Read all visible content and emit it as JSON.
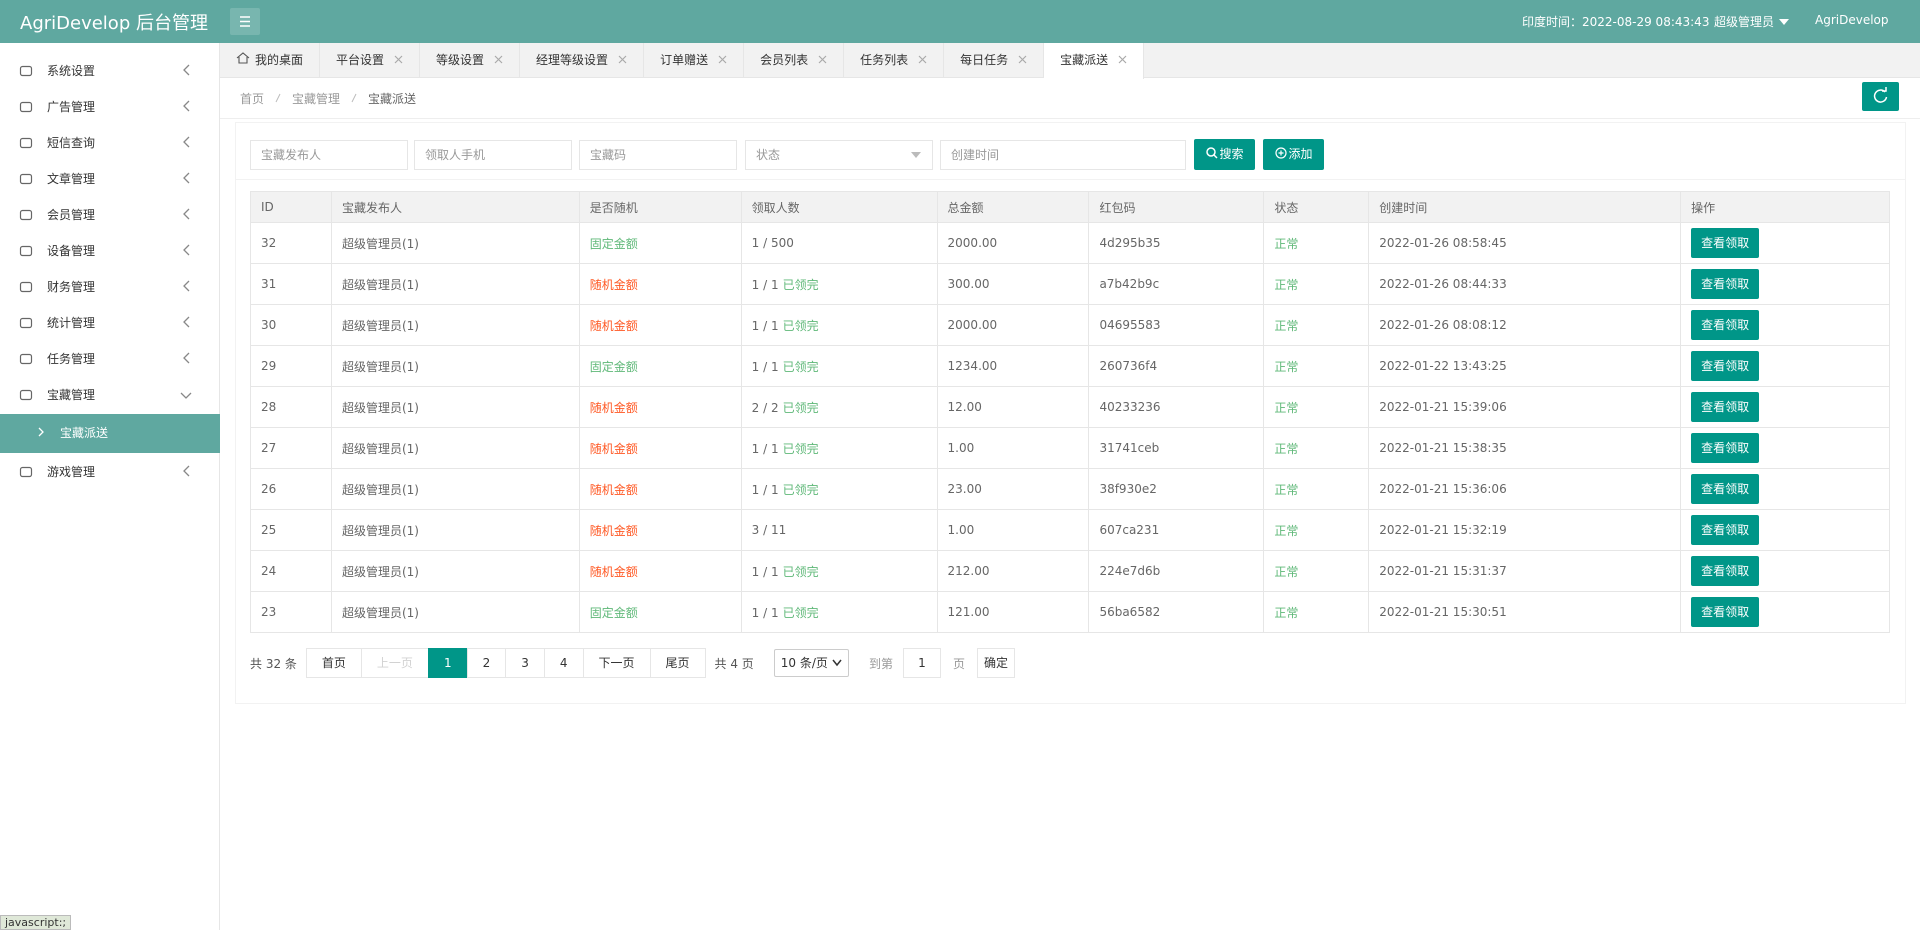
{
  "header": {
    "title": "AgriDevelop 后台管理",
    "time": "印度时间：2022-08-29 08:43:43",
    "role": "超级管理员",
    "user": "AgriDevelop"
  },
  "sidebar": {
    "items": [
      {
        "label": "系统设置"
      },
      {
        "label": "广告管理"
      },
      {
        "label": "短信查询"
      },
      {
        "label": "文章管理"
      },
      {
        "label": "会员管理"
      },
      {
        "label": "设备管理"
      },
      {
        "label": "财务管理"
      },
      {
        "label": "统计管理"
      },
      {
        "label": "任务管理"
      },
      {
        "label": "宝藏管理",
        "open": true,
        "children": [
          "宝藏派送"
        ]
      },
      {
        "label": "游戏管理"
      }
    ]
  },
  "tabs": [
    "我的桌面",
    "平台设置",
    "等级设置",
    "经理等级设置",
    "订单赠送",
    "会员列表",
    "任务列表",
    "每日任务",
    "宝藏派送"
  ],
  "active_tab": 8,
  "breadcrumb": [
    "首页",
    "宝藏管理",
    "宝藏派送"
  ],
  "search": {
    "fields": [
      "宝藏发布人",
      "领取人手机",
      "宝藏码"
    ],
    "status": "状态",
    "created": "创建时间",
    "search_button": "搜索",
    "add_button": "添加"
  },
  "table": {
    "columns": [
      "ID",
      "宝藏发布人",
      "是否随机",
      "领取人数",
      "总金额",
      "红包码",
      "状态",
      "创建时间",
      "操作"
    ],
    "rows": [
      {
        "id": "32",
        "publisher": "超级管理员(1)",
        "type": {
          "text": "固定金额",
          "color": "#5FB878"
        },
        "count": "1 / 500",
        "amount": "2000.00",
        "code": "4d295b35",
        "status": "正常",
        "time": "2022-01-26 08:58:45",
        "action": "查看领取"
      },
      {
        "id": "31",
        "publisher": "超级管理员(1)",
        "type": {
          "text": "随机金额",
          "color": "#FF5722"
        },
        "count": "1 / 1",
        "claimed": "已领完",
        "amount": "300.00",
        "code": "a7b42b9c",
        "status": "正常",
        "time": "2022-01-26 08:44:33",
        "action": "查看领取"
      },
      {
        "id": "30",
        "publisher": "超级管理员(1)",
        "type": {
          "text": "随机金额",
          "color": "#FF5722"
        },
        "count": "1 / 1",
        "claimed": "已领完",
        "amount": "2000.00",
        "code": "04695583",
        "status": "正常",
        "time": "2022-01-26 08:08:12",
        "action": "查看领取"
      },
      {
        "id": "29",
        "publisher": "超级管理员(1)",
        "type": {
          "text": "固定金额",
          "color": "#5FB878"
        },
        "count": "1 / 1",
        "claimed": "已领完",
        "amount": "1234.00",
        "code": "260736f4",
        "status": "正常",
        "time": "2022-01-22 13:43:25",
        "action": "查看领取"
      },
      {
        "id": "28",
        "publisher": "超级管理员(1)",
        "type": {
          "text": "随机金额",
          "color": "#FF5722"
        },
        "count": "2 / 2",
        "claimed": "已领完",
        "amount": "12.00",
        "code": "40233236",
        "status": "正常",
        "time": "2022-01-21 15:39:06",
        "action": "查看领取"
      },
      {
        "id": "27",
        "publisher": "超级管理员(1)",
        "type": {
          "text": "随机金额",
          "color": "#FF5722"
        },
        "count": "1 / 1",
        "claimed": "已领完",
        "amount": "1.00",
        "code": "31741ceb",
        "status": "正常",
        "time": "2022-01-21 15:38:35",
        "action": "查看领取"
      },
      {
        "id": "26",
        "publisher": "超级管理员(1)",
        "type": {
          "text": "随机金额",
          "color": "#FF5722"
        },
        "count": "1 / 1",
        "claimed": "已领完",
        "amount": "23.00",
        "code": "38f930e2",
        "status": "正常",
        "time": "2022-01-21 15:36:06",
        "action": "查看领取"
      },
      {
        "id": "25",
        "publisher": "超级管理员(1)",
        "type": {
          "text": "随机金额",
          "color": "#FF5722"
        },
        "count": "3 / 11",
        "amount": "1.00",
        "code": "607ca231",
        "status": "正常",
        "time": "2022-01-21 15:32:19",
        "action": "查看领取"
      },
      {
        "id": "24",
        "publisher": "超级管理员(1)",
        "type": {
          "text": "随机金额",
          "color": "#FF5722"
        },
        "count": "1 / 1",
        "claimed": "已领完",
        "amount": "212.00",
        "code": "224e7d6b",
        "status": "正常",
        "time": "2022-01-21 15:31:37",
        "action": "查看领取"
      },
      {
        "id": "23",
        "publisher": "超级管理员(1)",
        "type": {
          "text": "固定金额",
          "color": "#5FB878"
        },
        "count": "1 / 1",
        "claimed": "已领完",
        "amount": "121.00",
        "code": "56ba6582",
        "status": "正常",
        "time": "2022-01-21 15:30:51",
        "action": "查看领取"
      }
    ]
  },
  "pagination": {
    "total": "共 32 条",
    "first": "首页",
    "prev": "上一页",
    "pages": [
      "1",
      "2",
      "3",
      "4"
    ],
    "current": 0,
    "next": "下一页",
    "last": "尾页",
    "page_count": "共 4 页",
    "page_size": "10 条/页",
    "goto": "到第",
    "goto_value": "1",
    "page_unit": "页",
    "confirm": "确定"
  },
  "status_bar": "javascript:;"
}
